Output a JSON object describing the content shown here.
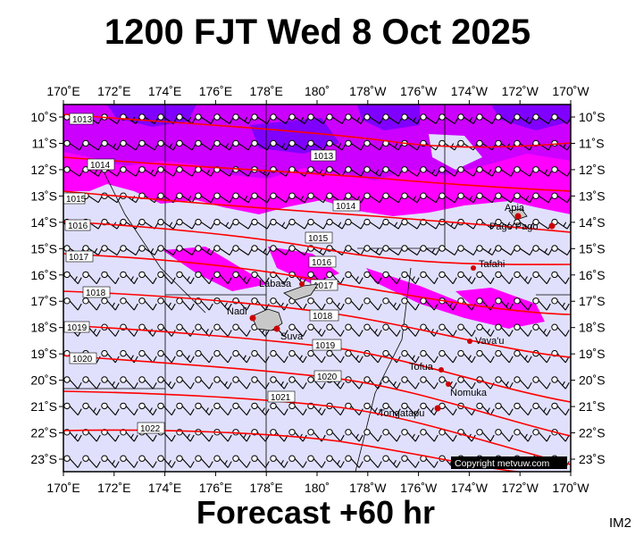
{
  "title": "1200 FJT Wed 8 Oct 2025",
  "subtitle": "Forecast +60 hr",
  "product_tag": "IM2",
  "copyright": "Copyright metvuw.com",
  "lon_labels": [
    "170˚E",
    "172˚E",
    "174˚E",
    "176˚E",
    "178˚E",
    "180˚",
    "178˚W",
    "176˚W",
    "174˚W",
    "172˚W",
    "170˚W"
  ],
  "lat_labels": [
    "10˚S",
    "11˚S",
    "12˚S",
    "13˚S",
    "14˚S",
    "15˚S",
    "16˚S",
    "17˚S",
    "18˚S",
    "19˚S",
    "20˚S",
    "21˚S",
    "22˚S",
    "23˚S"
  ],
  "isobars": [
    "1013",
    "1013",
    "1014",
    "1014",
    "1015",
    "1015",
    "1016",
    "1016",
    "1017",
    "1017",
    "1018",
    "1018",
    "1019",
    "1019",
    "1020",
    "1020",
    "1021",
    "1022"
  ],
  "places": [
    "Apia",
    "Pago Pago",
    "Tafahi",
    "Labasa",
    "Nadi",
    "Suva",
    "Vava'u",
    "Tofua",
    "Nomuka",
    "Tongatapu"
  ],
  "colors": {
    "ocean": "#e0e0fc",
    "rain_light": "#ff00ff",
    "rain_mid": "#cc00ff",
    "rain_heavy": "#8000ff",
    "isobar": "#ff0000",
    "city": "#cc0000"
  }
}
